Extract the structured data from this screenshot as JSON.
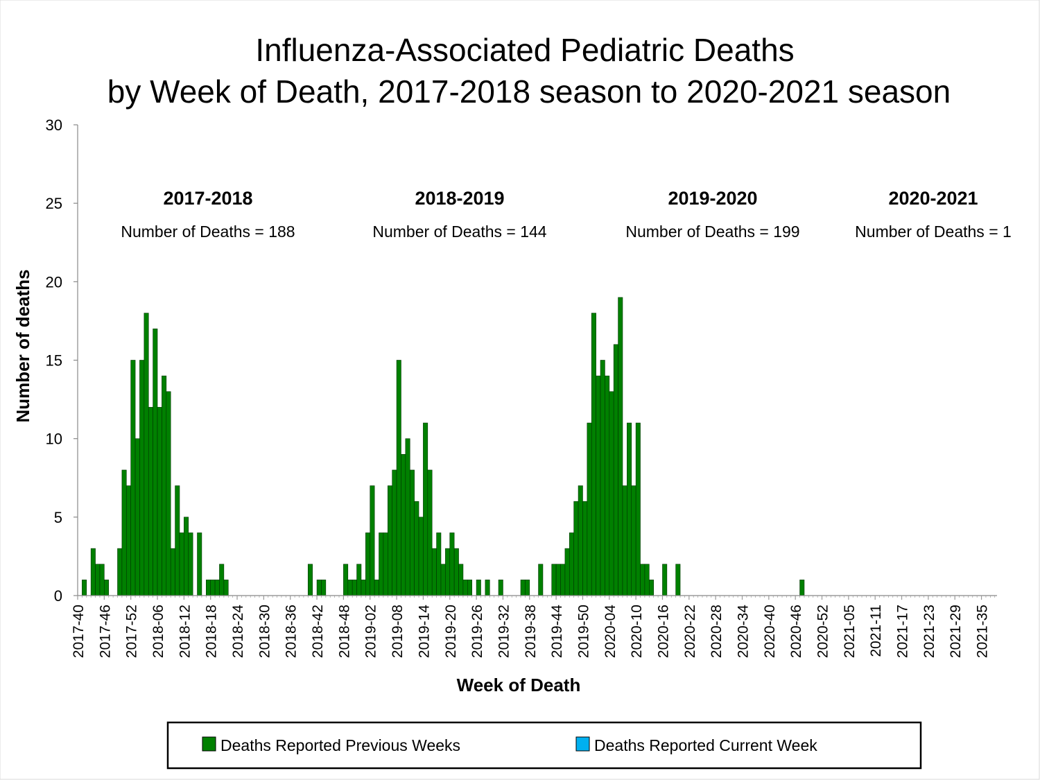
{
  "chart_data": {
    "type": "bar",
    "title_line1": "Influenza-Associated Pediatric Deaths",
    "title_line2": "by Week of Death, 2017-2018 season to 2020-2021 season",
    "xlabel": "Week of Death",
    "ylabel": "Number of deaths",
    "ylim": [
      0,
      30
    ],
    "yticks": [
      0,
      5,
      10,
      15,
      20,
      25,
      30
    ],
    "x_tick_labels": [
      "2017-40",
      "2017-46",
      "2017-52",
      "2018-06",
      "2018-12",
      "2018-18",
      "2018-24",
      "2018-30",
      "2018-36",
      "2018-42",
      "2018-48",
      "2019-02",
      "2019-08",
      "2019-14",
      "2019-20",
      "2019-26",
      "2019-32",
      "2019-38",
      "2019-44",
      "2019-50",
      "2020-04",
      "2020-10",
      "2020-16",
      "2020-22",
      "2020-28",
      "2020-34",
      "2020-40",
      "2020-46",
      "2020-52",
      "2021-05",
      "2021-11",
      "2021-17",
      "2021-23",
      "2021-29",
      "2021-35"
    ],
    "seasons": [
      {
        "label": "2017-2018",
        "count_text": "Number of Deaths = 188"
      },
      {
        "label": "2018-2019",
        "count_text": "Number of Deaths = 144"
      },
      {
        "label": "2019-2020",
        "count_text": "Number of Deaths = 199"
      },
      {
        "label": "2020-2021",
        "count_text": "Number of Deaths = 1"
      }
    ],
    "colors": {
      "previous": "#008000",
      "current": "#00b0f0",
      "bar_edge": "#003300"
    },
    "series": [
      {
        "name": "Deaths Reported Previous Weeks",
        "values": [
          0,
          1,
          0,
          3,
          2,
          2,
          1,
          0,
          0,
          3,
          8,
          7,
          15,
          10,
          15,
          18,
          12,
          17,
          12,
          14,
          13,
          3,
          7,
          4,
          5,
          4,
          0,
          4,
          0,
          1,
          1,
          1,
          2,
          1,
          0,
          0,
          0,
          0,
          0,
          0,
          0,
          0,
          0,
          0,
          0,
          0,
          0,
          0,
          0,
          0,
          0,
          0,
          2,
          0,
          1,
          1,
          0,
          0,
          0,
          0,
          2,
          1,
          1,
          2,
          1,
          4,
          7,
          1,
          4,
          4,
          7,
          8,
          15,
          9,
          10,
          8,
          6,
          5,
          11,
          8,
          3,
          4,
          2,
          3,
          4,
          3,
          2,
          1,
          1,
          0,
          1,
          0,
          1,
          0,
          0,
          1,
          0,
          0,
          0,
          0,
          1,
          1,
          0,
          0,
          2,
          0,
          0,
          2,
          2,
          2,
          3,
          4,
          6,
          7,
          6,
          11,
          18,
          14,
          15,
          14,
          13,
          16,
          19,
          7,
          11,
          7,
          11,
          2,
          2,
          1,
          0,
          0,
          2,
          0,
          0,
          2,
          0,
          0,
          0,
          0,
          0,
          0,
          0,
          0,
          0,
          0,
          0,
          0,
          0,
          0,
          0,
          0,
          0,
          0,
          0,
          0,
          0,
          0,
          0,
          0,
          0,
          0,
          0,
          0,
          0,
          0,
          0,
          0,
          0,
          0,
          0,
          0,
          0,
          0,
          0,
          0,
          0,
          0,
          0,
          0,
          0,
          0,
          0,
          0,
          0,
          0,
          0,
          0,
          0,
          0,
          0,
          0,
          0,
          0,
          0,
          0,
          0,
          0,
          0,
          0,
          0,
          0,
          0,
          0
        ]
      },
      {
        "name": "Deaths Reported Current Week",
        "values": []
      }
    ],
    "extra_points": [
      {
        "x": "2020-47",
        "value": 1
      }
    ],
    "legend": {
      "placement": "bottom",
      "items": [
        {
          "label": "Deaths Reported Previous Weeks",
          "color": "#008000"
        },
        {
          "label": "Deaths Reported Current Week",
          "color": "#00b0f0"
        }
      ]
    },
    "grid": false
  }
}
